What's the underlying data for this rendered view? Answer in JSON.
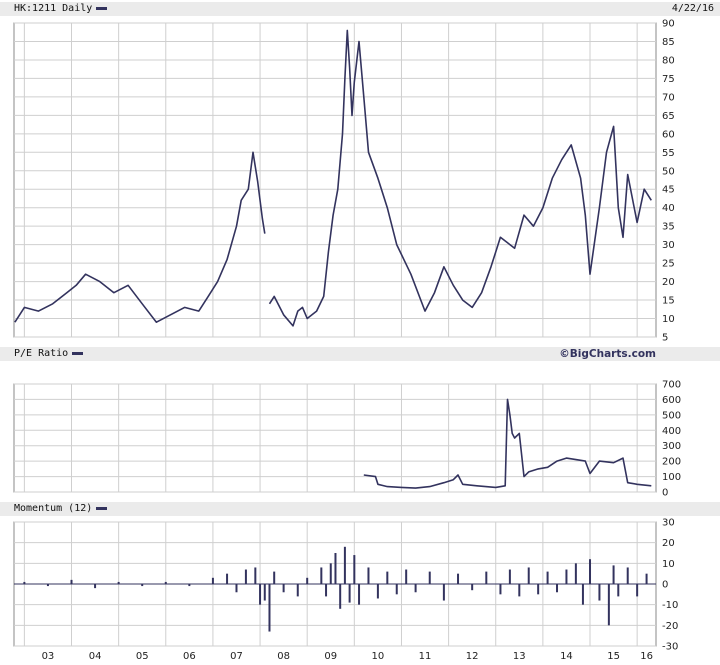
{
  "header": {
    "symbol_label": "HK:1211 Daily",
    "date": "4/22/16",
    "brand": "©BigCharts.com"
  },
  "colors": {
    "series": "#33335e",
    "grid": "#cfcfcf",
    "header_bg": "#ebebeb"
  },
  "chart_data": [
    {
      "type": "line",
      "title": "HK:1211 Daily",
      "ylim": [
        5,
        90
      ],
      "yticks": [
        5,
        10,
        15,
        20,
        25,
        30,
        35,
        40,
        45,
        50,
        55,
        60,
        65,
        70,
        75,
        80,
        85,
        90
      ],
      "x_labels": [
        "03",
        "04",
        "05",
        "06",
        "07",
        "08",
        "09",
        "10",
        "11",
        "12",
        "13",
        "14",
        "15",
        "16"
      ],
      "grid": true,
      "x": [
        2002.8,
        2003.0,
        2003.3,
        2003.6,
        2003.9,
        2004.1,
        2004.3,
        2004.6,
        2004.9,
        2005.2,
        2005.5,
        2005.8,
        2006.1,
        2006.4,
        2006.7,
        2006.9,
        2007.1,
        2007.3,
        2007.5,
        2007.6,
        2007.75,
        2007.85,
        2007.95,
        2008.05,
        2008.1,
        2008.12,
        2008.2,
        2008.3,
        2008.5,
        2008.7,
        2008.8,
        2008.9,
        2009.0,
        2009.2,
        2009.35,
        2009.45,
        2009.55,
        2009.65,
        2009.75,
        2009.8,
        2009.85,
        2009.9,
        2009.95,
        2010.0,
        2010.1,
        2010.2,
        2010.3,
        2010.5,
        2010.7,
        2010.9,
        2011.2,
        2011.5,
        2011.7,
        2011.9,
        2012.1,
        2012.3,
        2012.5,
        2012.7,
        2012.9,
        2013.1,
        2013.3,
        2013.4,
        2013.6,
        2013.8,
        2014.0,
        2014.2,
        2014.4,
        2014.6,
        2014.8,
        2014.9,
        2015.0,
        2015.1,
        2015.2,
        2015.35,
        2015.5,
        2015.6,
        2015.7,
        2015.8,
        2016.0,
        2016.15,
        2016.3
      ],
      "series": [
        {
          "values": [
            9,
            13,
            12,
            14,
            17,
            19,
            22,
            20,
            17,
            19,
            14,
            9,
            11,
            13,
            12,
            16,
            20,
            26,
            35,
            42,
            45,
            55,
            47,
            37,
            33,
            null,
            14,
            16,
            11,
            8,
            12,
            13,
            10,
            12,
            16,
            28,
            38,
            45,
            60,
            75,
            88,
            78,
            65,
            74,
            85,
            70,
            55,
            48,
            40,
            30,
            22,
            12,
            17,
            24,
            19,
            15,
            13,
            17,
            24,
            32,
            30,
            29,
            38,
            35,
            40,
            48,
            53,
            57,
            48,
            38,
            22,
            31,
            40,
            55,
            62,
            40,
            32,
            49,
            36,
            45,
            42
          ]
        }
      ]
    },
    {
      "type": "line",
      "title": "P/E Ratio",
      "ylim": [
        0,
        700
      ],
      "yticks": [
        0,
        100,
        200,
        300,
        400,
        500,
        600,
        700
      ],
      "x_labels": [
        "03",
        "04",
        "05",
        "06",
        "07",
        "08",
        "09",
        "10",
        "11",
        "12",
        "13",
        "14",
        "15",
        "16"
      ],
      "grid": true,
      "x": [
        2010.2,
        2010.45,
        2010.5,
        2010.7,
        2011.0,
        2011.3,
        2011.6,
        2011.9,
        2012.1,
        2012.2,
        2012.3,
        2012.6,
        2013.0,
        2013.2,
        2013.25,
        2013.3,
        2013.35,
        2013.4,
        2013.5,
        2013.6,
        2013.7,
        2013.9,
        2014.1,
        2014.3,
        2014.5,
        2014.7,
        2014.9,
        2015.0,
        2015.2,
        2015.5,
        2015.7,
        2015.8,
        2016.0,
        2016.3
      ],
      "series": [
        {
          "values": [
            110,
            100,
            50,
            35,
            30,
            25,
            35,
            60,
            80,
            110,
            50,
            40,
            30,
            40,
            600,
            500,
            380,
            350,
            380,
            100,
            130,
            150,
            160,
            200,
            220,
            210,
            200,
            120,
            200,
            190,
            220,
            60,
            50,
            40
          ]
        }
      ]
    },
    {
      "type": "bar",
      "title": "Momentum (12)",
      "ylim": [
        -30,
        30
      ],
      "yticks": [
        -30,
        -20,
        -10,
        0,
        10,
        20,
        30
      ],
      "x_labels": [
        "03",
        "04",
        "05",
        "06",
        "07",
        "08",
        "09",
        "10",
        "11",
        "12",
        "13",
        "14",
        "15",
        "16"
      ],
      "grid": true,
      "x": [
        2003.0,
        2003.5,
        2004.0,
        2004.5,
        2005.0,
        2005.5,
        2006.0,
        2006.5,
        2007.0,
        2007.3,
        2007.5,
        2007.7,
        2007.9,
        2008.0,
        2008.1,
        2008.2,
        2008.3,
        2008.5,
        2008.8,
        2009.0,
        2009.3,
        2009.4,
        2009.5,
        2009.6,
        2009.7,
        2009.8,
        2009.9,
        2010.0,
        2010.1,
        2010.3,
        2010.5,
        2010.7,
        2010.9,
        2011.1,
        2011.3,
        2011.6,
        2011.9,
        2012.2,
        2012.5,
        2012.8,
        2013.1,
        2013.3,
        2013.5,
        2013.7,
        2013.9,
        2014.1,
        2014.3,
        2014.5,
        2014.7,
        2014.85,
        2015.0,
        2015.2,
        2015.4,
        2015.5,
        2015.6,
        2015.8,
        2016.0,
        2016.2
      ],
      "series": [
        {
          "values": [
            1,
            -1,
            2,
            -2,
            1,
            -1,
            1,
            -1,
            3,
            5,
            -4,
            7,
            8,
            -10,
            -8,
            -23,
            6,
            -4,
            -6,
            3,
            8,
            -6,
            10,
            15,
            -12,
            18,
            -9,
            14,
            -10,
            8,
            -7,
            6,
            -5,
            7,
            -4,
            6,
            -8,
            5,
            -3,
            6,
            -5,
            7,
            -6,
            8,
            -5,
            6,
            -4,
            7,
            10,
            -10,
            12,
            -8,
            -20,
            9,
            -6,
            8,
            -6,
            5
          ]
        }
      ]
    }
  ]
}
